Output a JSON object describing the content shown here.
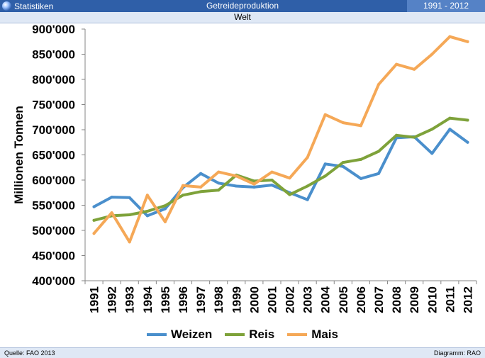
{
  "header": {
    "brand": "Statistiken",
    "title": "Getreideproduktion",
    "years": "1991 - 2012",
    "subtitle": "Welt"
  },
  "footer": {
    "source": "Quelle: FAO 2013",
    "diagram": "Diagramm: RAO"
  },
  "colors": {
    "Weizen": "#4a8fcc",
    "Reis": "#7ea23a",
    "Mais": "#f5a857",
    "header_bar": "#2f5fa8"
  },
  "chart_data": {
    "type": "line",
    "title": "Getreideproduktion",
    "subtitle": "Welt",
    "ylabel": "Millionen Tonnen",
    "xlabel": "",
    "ylim": [
      400000,
      900000
    ],
    "yticks": [
      "400'000",
      "450'000",
      "500'000",
      "550'000",
      "600'000",
      "650'000",
      "700'000",
      "750'000",
      "800'000",
      "850'000",
      "900'000"
    ],
    "grid": false,
    "legend": "bottom",
    "categories": [
      "1991",
      "1992",
      "1993",
      "1994",
      "1995",
      "1996",
      "1997",
      "1998",
      "1999",
      "2000",
      "2001",
      "2002",
      "2003",
      "2004",
      "2005",
      "2006",
      "2007",
      "2008",
      "2009",
      "2010",
      "2011",
      "2012"
    ],
    "series": [
      {
        "name": "Weizen",
        "values": [
          547000,
          566000,
          565000,
          529000,
          543000,
          585000,
          613000,
          594000,
          588000,
          586000,
          590000,
          575000,
          561000,
          632000,
          627000,
          603000,
          613000,
          684000,
          686000,
          653000,
          701000,
          675000
        ]
      },
      {
        "name": "Reis",
        "values": [
          520000,
          529000,
          531000,
          538000,
          549000,
          570000,
          577000,
          580000,
          610000,
          598000,
          600000,
          571000,
          588000,
          608000,
          635000,
          641000,
          657000,
          689000,
          685000,
          701000,
          723000,
          719000
        ]
      },
      {
        "name": "Mais",
        "values": [
          494000,
          535000,
          477000,
          570000,
          517000,
          589000,
          586000,
          616000,
          608000,
          592000,
          616000,
          604000,
          645000,
          730000,
          714000,
          708000,
          790000,
          830000,
          820000,
          850000,
          885000,
          875000
        ]
      }
    ]
  }
}
